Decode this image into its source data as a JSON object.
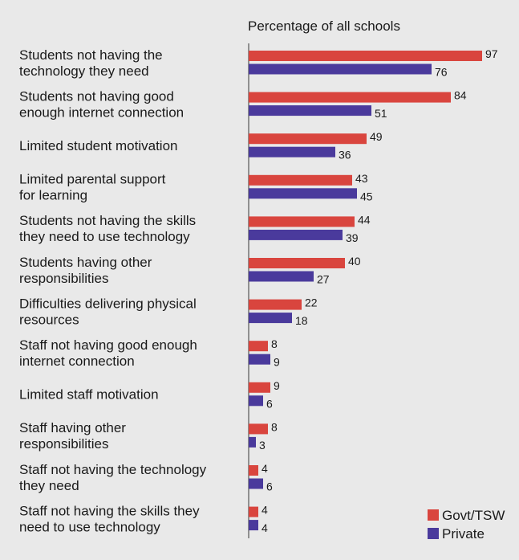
{
  "chart_data": {
    "type": "bar",
    "orientation": "horizontal",
    "title": "Percentage of all schools",
    "xlim": [
      0,
      100
    ],
    "grid": false,
    "legend_position": "bottom-right",
    "categories": [
      [
        "Students not having the",
        "technology they need"
      ],
      [
        "Students not having good",
        "enough internet connection"
      ],
      [
        "Limited student motivation"
      ],
      [
        "Limited parental support",
        "for learning"
      ],
      [
        "Students not having the skills",
        "they need to use technology"
      ],
      [
        "Students having other",
        "responsibilities"
      ],
      [
        "Difficulties delivering physical",
        "resources"
      ],
      [
        "Staff not having good enough",
        "internet connection"
      ],
      [
        "Limited staff motivation"
      ],
      [
        "Staff having other",
        "responsibilities"
      ],
      [
        "Staff not having the technology",
        "they need"
      ],
      [
        "Staff not having the skills they",
        "need to use technology"
      ]
    ],
    "series": [
      {
        "name": "Govt/TSW",
        "color": "#d9453e",
        "values": [
          97,
          84,
          49,
          43,
          44,
          40,
          22,
          8,
          9,
          8,
          4,
          4
        ]
      },
      {
        "name": "Private",
        "color": "#4a3a9c",
        "values": [
          76,
          51,
          36,
          45,
          39,
          27,
          18,
          9,
          6,
          3,
          6,
          4
        ]
      }
    ]
  }
}
